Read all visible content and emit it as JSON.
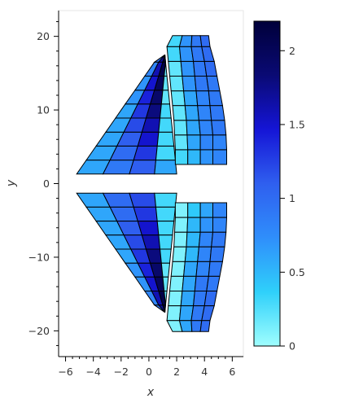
{
  "chart_data": {
    "type": "heatmap",
    "title": "",
    "xlabel": "x",
    "ylabel": "y",
    "xlim": [
      -6.5,
      6.8
    ],
    "ylim": [
      -23.5,
      23.5
    ],
    "x_ticks": [
      -6,
      -4,
      -2,
      0,
      2,
      4,
      6
    ],
    "x_tick_labels": [
      "−6",
      "−4",
      "−2",
      "0",
      "2",
      "4",
      "6"
    ],
    "y_ticks": [
      -20,
      -10,
      0,
      10,
      20
    ],
    "y_tick_labels": [
      "−20",
      "−10",
      "0",
      "10",
      "20"
    ],
    "grid": false,
    "colorbar": {
      "min": 0,
      "max": 2.2,
      "ticks": [
        0,
        0.5,
        1,
        1.5,
        2
      ],
      "tick_labels": [
        "0",
        "0.5",
        "1",
        "1.5",
        "2"
      ],
      "colors": [
        "#9ffefe",
        "#2fd0fa",
        "#2f8efb",
        "#2f5fef",
        "#1515d6",
        "#0a0a74",
        "#00003a"
      ]
    },
    "grids": [
      {
        "name": "lower-left",
        "rows": [
          {
            "y": -1.3,
            "x": [
              -5.2,
              -3.3,
              -1.4,
              0.4,
              2.0
            ]
          },
          {
            "y": -3.2,
            "x": [
              -4.5,
              -2.8,
              -1.1,
              0.5,
              1.9
            ]
          },
          {
            "y": -5.1,
            "x": [
              -3.8,
              -2.3,
              -0.8,
              0.6,
              1.8
            ]
          },
          {
            "y": -7.0,
            "x": [
              -3.1,
              -1.8,
              -0.5,
              0.7,
              1.7
            ]
          },
          {
            "y": -8.9,
            "x": [
              -2.4,
              -1.3,
              -0.2,
              0.8,
              1.6
            ]
          },
          {
            "y": -10.8,
            "x": [
              -1.7,
              -0.8,
              0.1,
              0.9,
              1.5
            ]
          },
          {
            "y": -12.7,
            "x": [
              -1.0,
              -0.3,
              0.4,
              1.0,
              1.4
            ]
          },
          {
            "y": -14.6,
            "x": [
              -0.3,
              0.2,
              0.7,
              1.1,
              1.3
            ]
          },
          {
            "y": -16.5,
            "x": [
              0.4,
              0.7,
              1.0,
              1.2,
              1.2
            ]
          },
          {
            "y": -17.5,
            "x": [
              1.15,
              1.15,
              1.15,
              1.15,
              1.15
            ]
          }
        ],
        "values": [
          [
            0.6,
            1.0,
            1.2,
            0.3
          ],
          [
            0.6,
            1.0,
            1.3,
            0.3
          ],
          [
            0.6,
            1.1,
            1.5,
            0.3
          ],
          [
            0.6,
            1.2,
            1.6,
            0.3
          ],
          [
            0.6,
            1.3,
            1.8,
            0.3
          ],
          [
            0.7,
            1.4,
            1.9,
            0.2
          ],
          [
            0.7,
            1.5,
            2.0,
            0.2
          ],
          [
            0.8,
            1.6,
            2.1,
            0.2
          ],
          [
            0.9,
            1.7,
            2.2,
            0.2
          ]
        ]
      },
      {
        "name": "upper-left",
        "rows": [
          {
            "y": 1.3,
            "x": [
              -5.2,
              -3.3,
              -1.4,
              0.4,
              2.0
            ]
          },
          {
            "y": 3.2,
            "x": [
              -4.5,
              -2.8,
              -1.1,
              0.5,
              1.9
            ]
          },
          {
            "y": 5.1,
            "x": [
              -3.8,
              -2.3,
              -0.8,
              0.6,
              1.8
            ]
          },
          {
            "y": 7.0,
            "x": [
              -3.1,
              -1.8,
              -0.5,
              0.7,
              1.7
            ]
          },
          {
            "y": 8.9,
            "x": [
              -2.4,
              -1.3,
              -0.2,
              0.8,
              1.6
            ]
          },
          {
            "y": 10.8,
            "x": [
              -1.7,
              -0.8,
              0.1,
              0.9,
              1.5
            ]
          },
          {
            "y": 12.7,
            "x": [
              -1.0,
              -0.3,
              0.4,
              1.0,
              1.4
            ]
          },
          {
            "y": 14.6,
            "x": [
              -0.3,
              0.2,
              0.7,
              1.1,
              1.3
            ]
          },
          {
            "y": 16.5,
            "x": [
              0.4,
              0.7,
              1.0,
              1.2,
              1.2
            ]
          },
          {
            "y": 17.5,
            "x": [
              1.15,
              1.15,
              1.15,
              1.15,
              1.15
            ]
          }
        ],
        "values": [
          [
            0.6,
            0.9,
            1.1,
            0.6
          ],
          [
            0.6,
            1.0,
            1.3,
            0.3
          ],
          [
            0.6,
            1.1,
            1.5,
            0.3
          ],
          [
            0.6,
            1.2,
            1.6,
            0.3
          ],
          [
            0.6,
            1.3,
            1.8,
            0.3
          ],
          [
            0.7,
            1.4,
            1.9,
            0.2
          ],
          [
            0.7,
            1.5,
            2.0,
            0.2
          ],
          [
            0.8,
            1.6,
            2.1,
            0.2
          ],
          [
            0.9,
            1.7,
            2.2,
            0.2
          ]
        ]
      },
      {
        "name": "upper-right",
        "rows": [
          {
            "y": 2.6,
            "x": [
              1.9,
              2.8,
              3.7,
              4.6,
              5.6
            ]
          },
          {
            "y": 4.6,
            "x": [
              1.9,
              2.8,
              3.7,
              4.6,
              5.6
            ]
          },
          {
            "y": 6.6,
            "x": [
              1.85,
              2.75,
              3.7,
              4.6,
              5.55
            ]
          },
          {
            "y": 8.6,
            "x": [
              1.8,
              2.7,
              3.6,
              4.5,
              5.45
            ]
          },
          {
            "y": 10.6,
            "x": [
              1.7,
              2.6,
              3.5,
              4.4,
              5.3
            ]
          },
          {
            "y": 12.6,
            "x": [
              1.6,
              2.5,
              3.4,
              4.3,
              5.1
            ]
          },
          {
            "y": 14.6,
            "x": [
              1.5,
              2.4,
              3.3,
              4.15,
              4.9
            ]
          },
          {
            "y": 16.6,
            "x": [
              1.4,
              2.3,
              3.2,
              4.0,
              4.7
            ]
          },
          {
            "y": 18.6,
            "x": [
              1.3,
              2.2,
              3.05,
              3.8,
              4.4
            ]
          },
          {
            "y": 20.1,
            "x": [
              1.7,
              2.4,
              3.1,
              3.7,
              4.3
            ]
          }
        ],
        "values": [
          [
            0.3,
            0.5,
            0.7,
            0.8
          ],
          [
            0.2,
            0.6,
            0.8,
            0.8
          ],
          [
            0.2,
            0.6,
            0.8,
            0.9
          ],
          [
            0.2,
            0.6,
            0.8,
            0.9
          ],
          [
            0.2,
            0.6,
            0.8,
            0.9
          ],
          [
            0.2,
            0.7,
            0.9,
            0.9
          ],
          [
            0.2,
            0.7,
            0.9,
            1.0
          ],
          [
            0.3,
            0.7,
            0.9,
            1.0
          ],
          [
            0.3,
            0.7,
            0.9,
            1.0
          ]
        ]
      },
      {
        "name": "lower-right",
        "rows": [
          {
            "y": -2.6,
            "x": [
              1.9,
              2.8,
              3.7,
              4.6,
              5.6
            ]
          },
          {
            "y": -4.6,
            "x": [
              1.9,
              2.8,
              3.7,
              4.6,
              5.6
            ]
          },
          {
            "y": -6.6,
            "x": [
              1.85,
              2.75,
              3.7,
              4.6,
              5.55
            ]
          },
          {
            "y": -8.6,
            "x": [
              1.8,
              2.7,
              3.6,
              4.5,
              5.45
            ]
          },
          {
            "y": -10.6,
            "x": [
              1.7,
              2.6,
              3.5,
              4.4,
              5.3
            ]
          },
          {
            "y": -12.6,
            "x": [
              1.6,
              2.5,
              3.4,
              4.3,
              5.1
            ]
          },
          {
            "y": -14.6,
            "x": [
              1.5,
              2.4,
              3.3,
              4.15,
              4.9
            ]
          },
          {
            "y": -16.6,
            "x": [
              1.4,
              2.3,
              3.2,
              4.0,
              4.7
            ]
          },
          {
            "y": -18.6,
            "x": [
              1.3,
              2.2,
              3.05,
              3.8,
              4.4
            ]
          },
          {
            "y": -20.1,
            "x": [
              1.7,
              2.4,
              3.1,
              3.7,
              4.3
            ]
          }
        ],
        "values": [
          [
            0.1,
            0.4,
            0.6,
            0.8
          ],
          [
            0.1,
            0.5,
            0.7,
            0.8
          ],
          [
            0.1,
            0.5,
            0.8,
            0.9
          ],
          [
            0.1,
            0.5,
            0.8,
            0.9
          ],
          [
            0.1,
            0.6,
            0.8,
            0.9
          ],
          [
            0.1,
            0.6,
            0.9,
            0.9
          ],
          [
            0.1,
            0.6,
            0.9,
            1.0
          ],
          [
            0.1,
            0.6,
            0.9,
            1.0
          ],
          [
            0.1,
            0.6,
            0.9,
            1.0
          ]
        ]
      }
    ]
  }
}
